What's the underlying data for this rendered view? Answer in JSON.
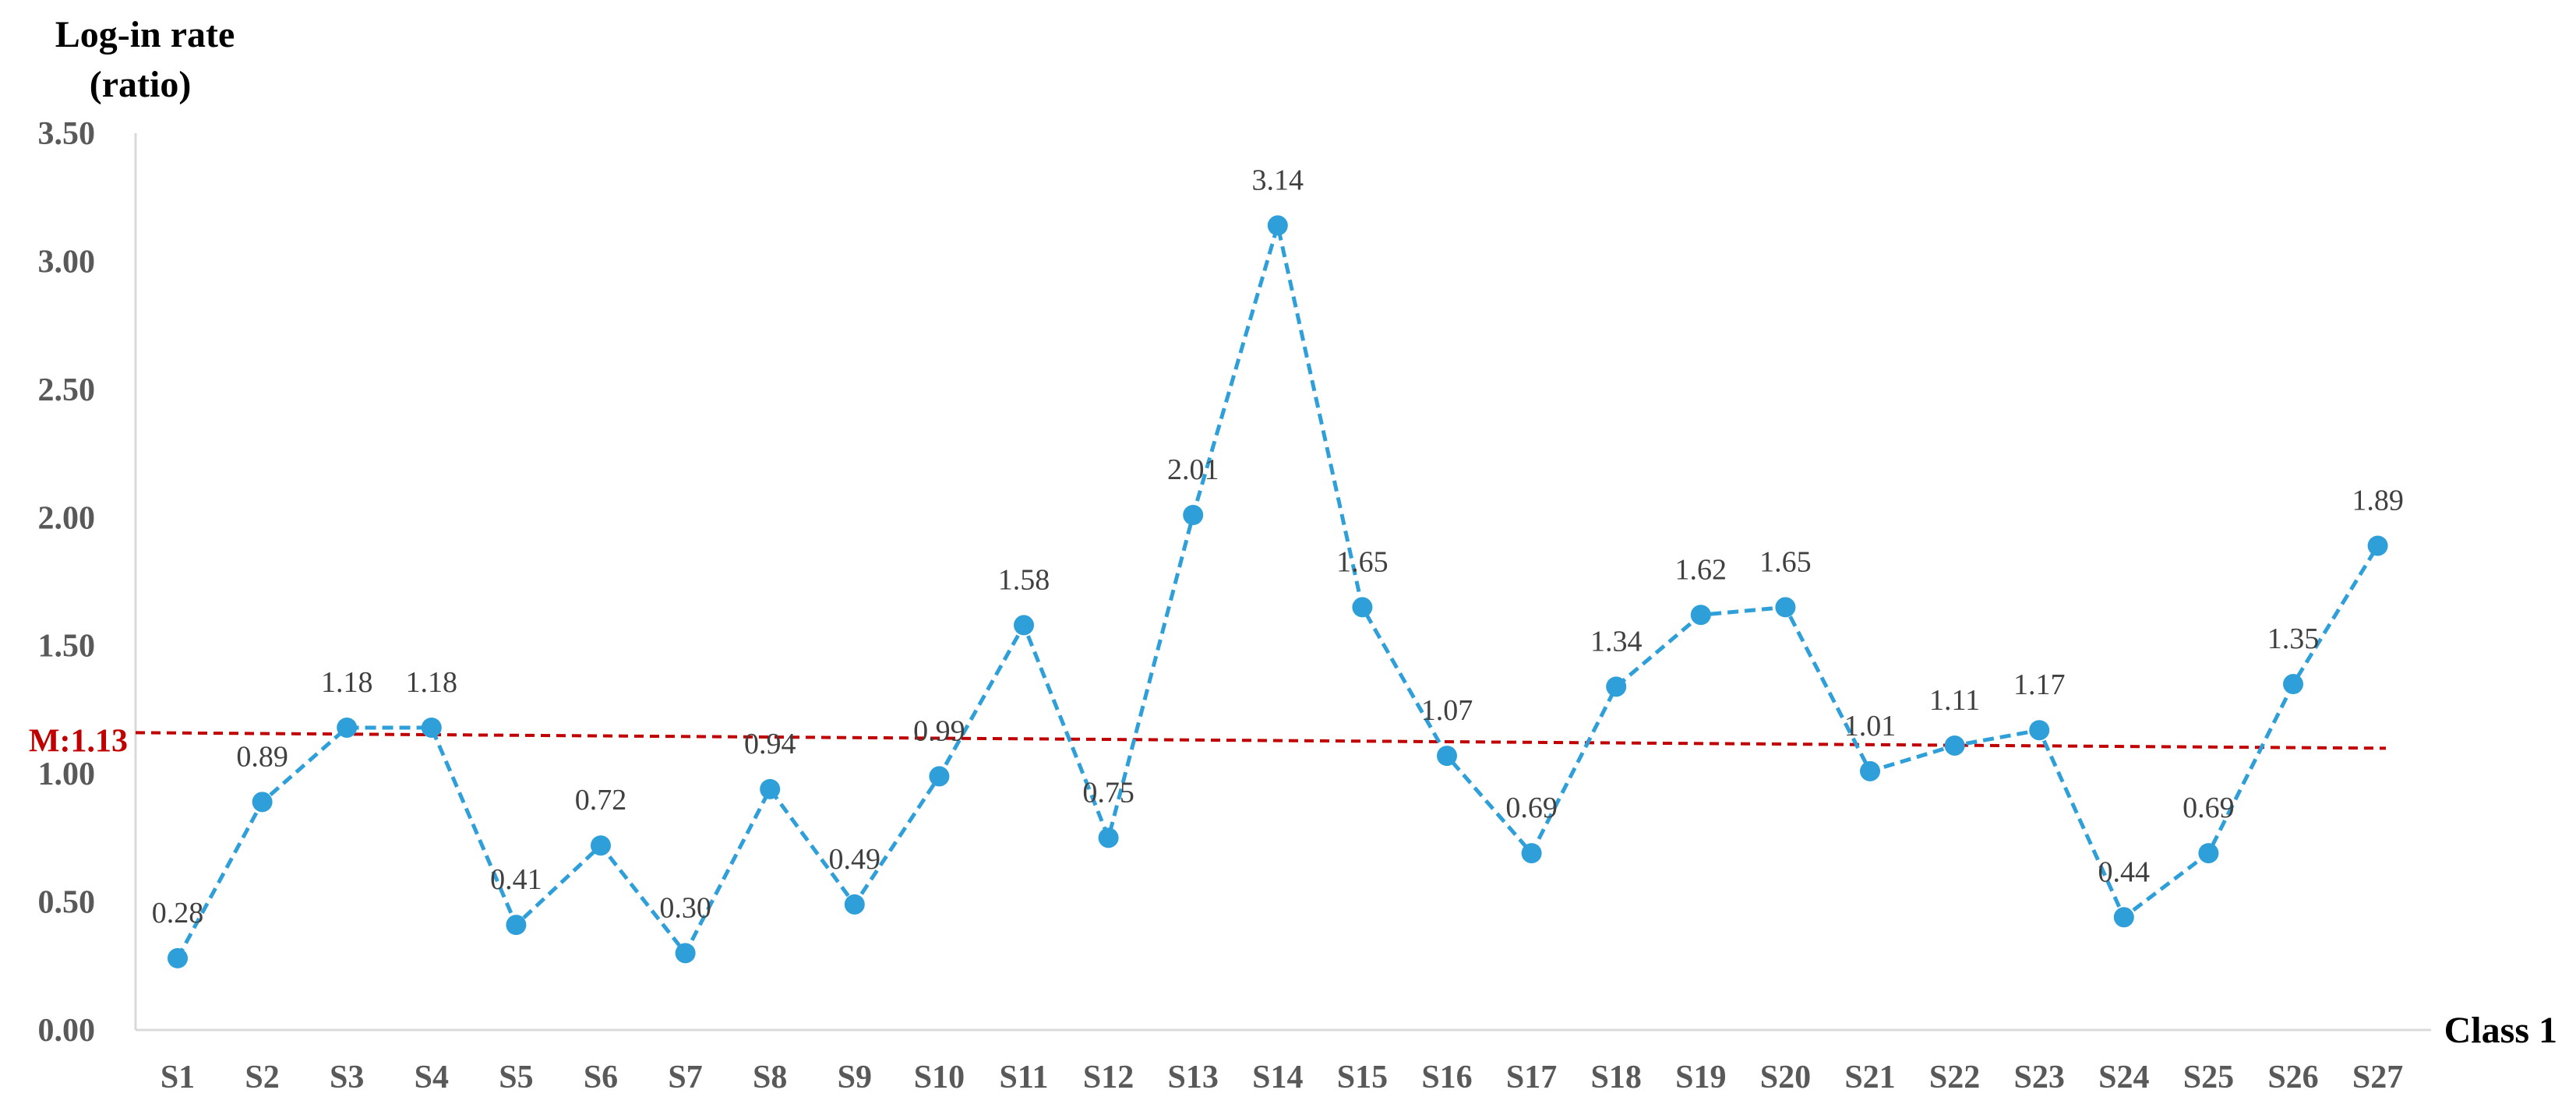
{
  "chart_data": {
    "type": "line",
    "ylabel_line1": "Log-in rate",
    "ylabel_line2": "(ratio)",
    "xlabel": "Class 1",
    "ylim": [
      0,
      3.5
    ],
    "yticks": [
      "0.00",
      "0.50",
      "1.00",
      "1.50",
      "2.00",
      "2.50",
      "3.00",
      "3.50"
    ],
    "categories": [
      "S1",
      "S2",
      "S3",
      "S4",
      "S5",
      "S6",
      "S7",
      "S8",
      "S9",
      "S10",
      "S11",
      "S12",
      "S13",
      "S14",
      "S15",
      "S16",
      "S17",
      "S18",
      "S19",
      "S20",
      "S21",
      "S22",
      "S23",
      "S24",
      "S25",
      "S26",
      "S27"
    ],
    "values": [
      0.28,
      0.89,
      1.18,
      1.18,
      0.41,
      0.72,
      0.3,
      0.94,
      0.49,
      0.99,
      1.58,
      0.75,
      2.01,
      3.14,
      1.65,
      1.07,
      0.69,
      1.34,
      1.62,
      1.65,
      1.01,
      1.11,
      1.17,
      0.44,
      0.69,
      1.35,
      1.89
    ],
    "data_labels": [
      "0.28",
      "0.89",
      "1.18",
      "1.18",
      "0.41",
      "0.72",
      "0.30",
      "0.94",
      "0.49",
      "0.99",
      "1.58",
      "0.75",
      "2.01",
      "3.14",
      "1.65",
      "1.07",
      "0.69",
      "1.34",
      "1.62",
      "1.65",
      "1.01",
      "1.11",
      "1.17",
      "0.44",
      "0.69",
      "1.35",
      "1.89"
    ],
    "series_color": "#2E9FD9",
    "line_style": "dashed",
    "marker": "circle",
    "grid": false,
    "mean_line": {
      "label": "M:1.13",
      "value": 1.13,
      "color": "#C00000",
      "style": "dashed"
    }
  }
}
